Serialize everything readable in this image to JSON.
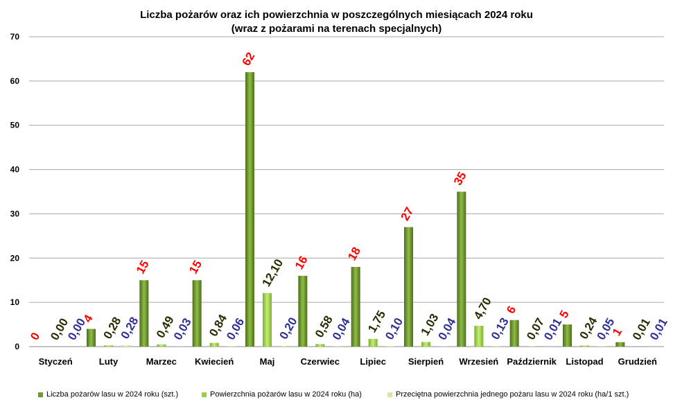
{
  "chart_data": {
    "type": "bar",
    "title": "Liczba pożarów oraz ich powierzchnia w poszczególnych miesiącach 2024 roku",
    "subtitle": "(wraz z pożarami na terenach specjalnych)",
    "categories": [
      "Styczeń",
      "Luty",
      "Marzec",
      "Kwiecień",
      "Maj",
      "Czerwiec",
      "Lipiec",
      "Sierpień",
      "Wrzesień",
      "Październik",
      "Listopad",
      "Grudzień"
    ],
    "ylim": [
      0,
      70
    ],
    "yticks": [
      0,
      10,
      20,
      30,
      40,
      50,
      60,
      70
    ],
    "grid": true,
    "legend_position": "bottom",
    "series": [
      {
        "name": "Liczba pożarów lasu w 2024 roku (szt.)",
        "values": [
          0,
          4,
          15,
          15,
          62,
          16,
          18,
          27,
          35,
          6,
          5,
          1
        ],
        "labels": [
          "0",
          "4",
          "15",
          "15",
          "62",
          "16",
          "18",
          "27",
          "35",
          "6",
          "5",
          "1"
        ],
        "color": "#6f9a2e",
        "label_color": "#ff0000"
      },
      {
        "name": "Powierzchnia pożarów lasu w 2024 roku (ha)",
        "values": [
          0.0,
          0.28,
          0.49,
          0.84,
          12.1,
          0.58,
          1.75,
          1.03,
          4.7,
          0.07,
          0.24,
          0.01
        ],
        "labels": [
          "0,00",
          "0,28",
          "0,49",
          "0,84",
          "12,10",
          "0,58",
          "1,75",
          "1,03",
          "4,70",
          "0,07",
          "0,24",
          "0,01"
        ],
        "color": "#9bd03c",
        "label_color": "#2b2b00"
      },
      {
        "name": "Przeciętna powierzchnia jednego pożaru lasu w 2024 roku (ha/1 szt.)",
        "values": [
          0.0,
          0.28,
          0.03,
          0.06,
          0.2,
          0.04,
          0.1,
          0.04,
          0.13,
          0.01,
          0.05,
          0.01
        ],
        "labels": [
          "0,00",
          "0,28",
          "0,03",
          "0,06",
          "0,20",
          "0,04",
          "0,10",
          "0,04",
          "0,13",
          "0,01",
          "0,05",
          "0,01"
        ],
        "color": "#d0ec9a",
        "label_color": "#2e3192"
      }
    ]
  }
}
